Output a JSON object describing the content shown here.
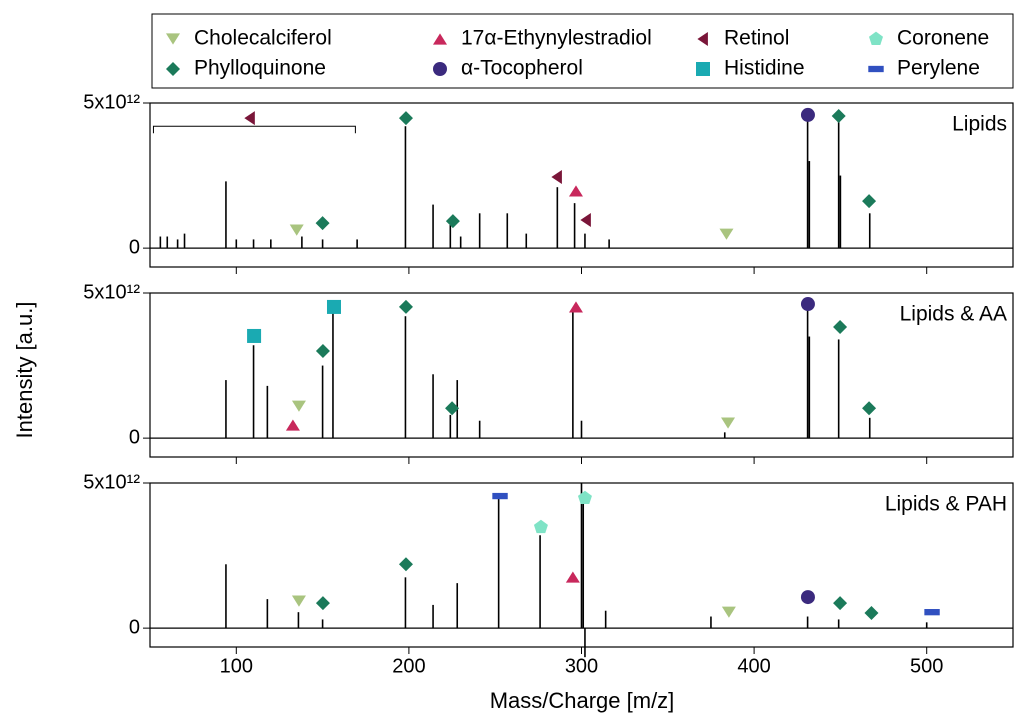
{
  "chart_data": {
    "type": "stick",
    "x_label": "Mass/Charge [m/z]",
    "y_label": "Intensity [a.u.]",
    "xlim": [
      50,
      550
    ],
    "xticks": [
      100,
      200,
      300,
      400,
      500
    ],
    "ylim": [
      -650000000000.0,
      5000000000000.0
    ],
    "yticks": [
      0,
      {
        "value": 5000000000000.0,
        "label": "5x10¹²"
      }
    ],
    "line_color": "#000000",
    "legend": [
      {
        "name": "Cholecalciferol",
        "color": "#a9c47f",
        "marker": "triangle-down"
      },
      {
        "name": "Phylloquinone",
        "color": "#1b7a5a",
        "marker": "diamond"
      },
      {
        "name": "17α-Ethynylestradiol",
        "color": "#c8285c",
        "marker": "triangle-up"
      },
      {
        "name": "α-Tocopherol",
        "color": "#3b2a7e",
        "marker": "circle"
      },
      {
        "name": "Retinol",
        "color": "#7a1639",
        "marker": "triangle-left"
      },
      {
        "name": "Histidine",
        "color": "#1aaab2",
        "marker": "square"
      },
      {
        "name": "Coronene",
        "color": "#7fe3c6",
        "marker": "pentagon"
      },
      {
        "name": "Perylene",
        "color": "#3050c0",
        "marker": "dash"
      }
    ],
    "panels": [
      {
        "label": "Lipids",
        "x": [
          56,
          60,
          66,
          70,
          94,
          100,
          110,
          120,
          138,
          150,
          170,
          198,
          214,
          224,
          230,
          241,
          257,
          268,
          286,
          296,
          302,
          316,
          431,
          432,
          449,
          450,
          467
        ],
        "values": [
          400000000000.0,
          400000000000.0,
          300000000000.0,
          500000000000.0,
          2300000000000.0,
          300000000000.0,
          300000000000.0,
          300000000000.0,
          400000000000.0,
          300000000000.0,
          300000000000.0,
          4200000000000.0,
          1500000000000.0,
          800000000000.0,
          400000000000.0,
          1200000000000.0,
          1200000000000.0,
          500000000000.0,
          2100000000000.0,
          1550000000000.0,
          500000000000.0,
          300000000000.0,
          4400000000000.0,
          3000000000000.0,
          4400000000000.0,
          2500000000000.0,
          1200000000000.0
        ],
        "bracket": {
          "x": [
            52,
            169
          ],
          "y": 4200000000000.0
        },
        "markers": [
          {
            "name": "Cholecalciferol",
            "x": [
              135,
              384
            ],
            "values": [
              620000000000.0,
              480000000000.0
            ]
          },
          {
            "name": "Phylloquinone",
            "x": [
              150,
              198.3,
              225.5,
              449,
              466.6
            ],
            "values": [
              860000000000.0,
              4480000000000.0,
              930000000000.0,
              4550000000000.0,
              1620000000000.0
            ]
          },
          {
            "name": "Retinol",
            "x": [
              107.9,
              285.8,
              302.6
            ],
            "values": [
              4480000000000.0,
              2450000000000.0,
              970000000000.0
            ]
          },
          {
            "name": "17α-Ethynylestradiol",
            "x": [
              296.8
            ],
            "values": [
              1970000000000.0
            ]
          },
          {
            "name": "α-Tocopherol",
            "x": [
              431.2
            ],
            "values": [
              4590000000000.0
            ]
          }
        ]
      },
      {
        "label": "Lipids & AA",
        "x": [
          94,
          110,
          118,
          150,
          156,
          198,
          214,
          224,
          228,
          241,
          295,
          300,
          383,
          431,
          432,
          449,
          467
        ],
        "values": [
          2000000000000.0,
          3200000000000.0,
          1800000000000.0,
          2500000000000.0,
          4600000000000.0,
          4200000000000.0,
          2200000000000.0,
          800000000000.0,
          2000000000000.0,
          600000000000.0,
          4400000000000.0,
          600000000000.0,
          200000000000.0,
          4400000000000.0,
          3500000000000.0,
          3400000000000.0,
          700000000000.0
        ],
        "markers": [
          {
            "name": "Histidine",
            "x": [
              110.3,
              156.6
            ],
            "values": [
              3520000000000.0,
              4520000000000.0
            ]
          },
          {
            "name": "17α-Ethynylestradiol",
            "x": [
              132.8,
              296.8
            ],
            "values": [
              450000000000.0,
              4520000000000.0
            ]
          },
          {
            "name": "Cholecalciferol",
            "x": [
              136.3,
              384.9
            ],
            "values": [
              1100000000000.0,
              520000000000.0
            ]
          },
          {
            "name": "Phylloquinone",
            "x": [
              150.2,
              198.3,
              225,
              449.8,
              466.6
            ],
            "values": [
              3000000000000.0,
              4520000000000.0,
              1030000000000.0,
              3830000000000.0,
              1030000000000.0
            ]
          },
          {
            "name": "α-Tocopherol",
            "x": [
              431.2
            ],
            "values": [
              4620000000000.0
            ]
          }
        ]
      },
      {
        "label": "Lipids & PAH",
        "x": [
          94,
          118,
          136,
          150,
          198,
          214,
          228,
          252,
          276,
          300,
          301,
          302,
          314,
          375,
          431,
          449,
          500
        ],
        "values": [
          2200000000000.0,
          1000000000000.0,
          550000000000.0,
          300000000000.0,
          1750000000000.0,
          800000000000.0,
          1550000000000.0,
          4600000000000.0,
          3200000000000.0,
          5000000000000.0,
          4500000000000.0,
          -1000000000000.0,
          600000000000.0,
          400000000000.0,
          400000000000.0,
          300000000000.0,
          200000000000.0
        ],
        "markers": [
          {
            "name": "Perylene",
            "x": [
              252.8,
              503.1
            ],
            "values": [
              4550000000000.0,
              550000000000.0
            ]
          },
          {
            "name": "Coronene",
            "x": [
              276.5,
              302
            ],
            "values": [
              3480000000000.0,
              4480000000000.0
            ]
          },
          {
            "name": "17α-Ethynylestradiol",
            "x": [
              295
            ],
            "values": [
              1760000000000.0
            ]
          },
          {
            "name": "Cholecalciferol",
            "x": [
              136.3,
              385.4
            ],
            "values": [
              930000000000.0,
              550000000000.0
            ]
          },
          {
            "name": "Phylloquinone",
            "x": [
              150.2,
              198.3,
              449.8,
              468
            ],
            "values": [
              860000000000.0,
              2200000000000.0,
              860000000000.0,
              520000000000.0
            ]
          },
          {
            "name": "α-Tocopherol",
            "x": [
              431.2
            ],
            "values": [
              1070000000000.0
            ]
          }
        ]
      }
    ]
  }
}
